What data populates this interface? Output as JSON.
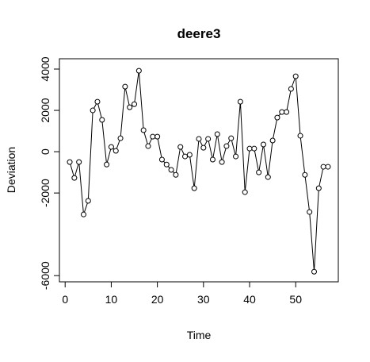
{
  "chart_data": {
    "type": "line",
    "title": "deere3",
    "xlabel": "Time",
    "ylabel": "Deviation",
    "x": [
      1,
      2,
      3,
      4,
      5,
      6,
      7,
      8,
      9,
      10,
      11,
      12,
      13,
      14,
      15,
      16,
      17,
      18,
      19,
      20,
      21,
      22,
      23,
      24,
      25,
      26,
      27,
      28,
      29,
      30,
      31,
      32,
      33,
      34,
      35,
      36,
      37,
      38,
      39,
      40,
      41,
      42,
      43,
      44,
      45,
      46,
      47,
      48,
      49,
      50,
      51,
      52,
      53,
      54,
      55,
      56,
      57
    ],
    "series": [
      {
        "name": "deere3",
        "color": "#000000",
        "values": [
          -500,
          -1270,
          -500,
          -3040,
          -2380,
          2000,
          2420,
          1540,
          -620,
          230,
          40,
          650,
          3150,
          2150,
          2300,
          3920,
          1040,
          270,
          730,
          730,
          -380,
          -620,
          -880,
          -1120,
          230,
          -230,
          -150,
          -1770,
          620,
          190,
          620,
          -380,
          850,
          -500,
          270,
          650,
          -230,
          2420,
          -1960,
          150,
          150,
          -1000,
          350,
          -1230,
          540,
          1650,
          1920,
          1920,
          3040,
          3650,
          770,
          -1120,
          -2920,
          -5810,
          -1770,
          -730,
          -730
        ]
      }
    ],
    "xlim": [
      -1.24,
      59.24
    ],
    "xticks": [
      0,
      10,
      20,
      30,
      40,
      50
    ],
    "ylim": [
      -6300,
      4500
    ],
    "yticks": [
      -6000,
      -2000,
      0,
      2000,
      4000
    ]
  }
}
